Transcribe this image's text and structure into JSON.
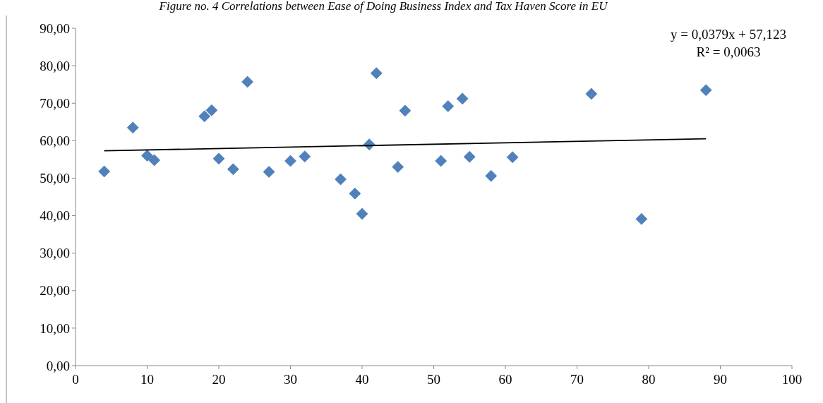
{
  "chart_data": {
    "type": "scatter",
    "title": "Figure no. 4 Correlations between Ease of Doing Business Index and Tax Haven Score in EU",
    "xlim": [
      0,
      100
    ],
    "xticks": [
      0,
      10,
      20,
      30,
      40,
      50,
      60,
      70,
      80,
      90,
      100
    ],
    "ylim": [
      0,
      90
    ],
    "yticks": [
      {
        "value": 0,
        "label": "0,00"
      },
      {
        "value": 10,
        "label": "10,00"
      },
      {
        "value": 20,
        "label": "20,00"
      },
      {
        "value": 30,
        "label": "30,00"
      },
      {
        "value": 40,
        "label": "40,00"
      },
      {
        "value": 50,
        "label": "50,00"
      },
      {
        "value": 60,
        "label": "60,00"
      },
      {
        "value": 70,
        "label": "70,00"
      },
      {
        "value": 80,
        "label": "80,00"
      },
      {
        "value": 90,
        "label": "90,00"
      }
    ],
    "grid": false,
    "annotations": [
      "y = 0,0379x + 57,123",
      "R² = 0,0063"
    ],
    "series": [
      {
        "type": "scatter",
        "marker": "diamond",
        "color": "#4f81bd",
        "x": [
          4,
          8,
          10,
          11,
          18,
          19,
          20,
          22,
          24,
          27,
          30,
          32,
          37,
          39,
          40,
          41,
          42,
          45,
          46,
          51,
          52,
          54,
          55,
          58,
          61,
          72,
          79,
          88
        ],
        "values": [
          51.8,
          63.5,
          56.0,
          54.8,
          66.5,
          68.1,
          55.2,
          52.4,
          75.7,
          51.7,
          54.6,
          55.8,
          49.7,
          45.9,
          40.5,
          59.0,
          78.0,
          53.0,
          68.0,
          54.6,
          69.2,
          71.2,
          55.7,
          50.6,
          55.6,
          72.5,
          39.1,
          73.5
        ]
      },
      {
        "type": "line",
        "color": "#000000",
        "x": [
          4,
          88
        ],
        "values": [
          57.3,
          60.5
        ]
      }
    ]
  }
}
